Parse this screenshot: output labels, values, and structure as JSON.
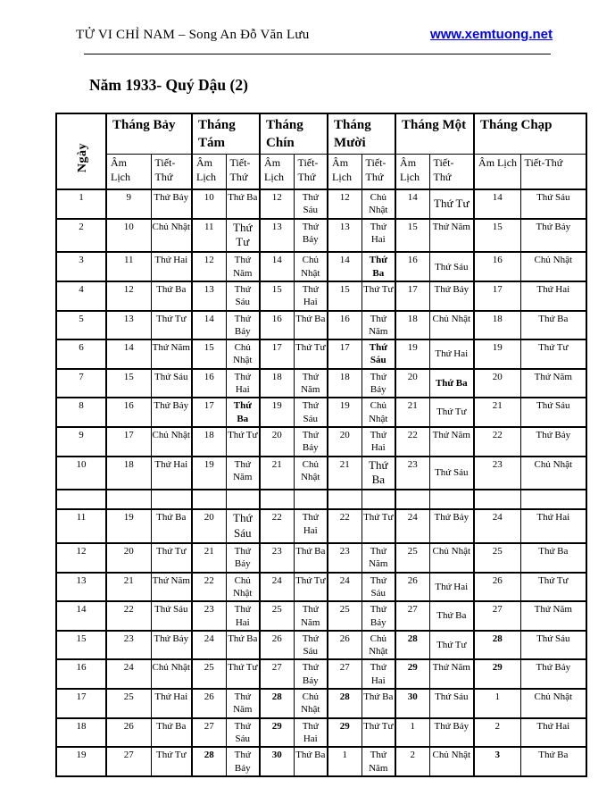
{
  "header": {
    "left_text": "TỬ VI CHỈ NAM – Song An Đỗ Văn Lưu",
    "link_text": "www.xemtuong.net",
    "link_color": "#0000ff"
  },
  "title": "Năm 1933- Quý Dậu (2)",
  "table": {
    "day_label": "Ngày",
    "months": [
      "Tháng Bảy",
      "Tháng Tám",
      "Tháng Chín",
      "Tháng Mười",
      "Tháng Một",
      "Tháng Chạp"
    ],
    "sub": {
      "am": "Âm Lịch",
      "tiet": "Tiết-Thứ"
    },
    "rows": [
      {
        "day": "1",
        "cells": [
          {
            "a": "9",
            "t": "Thứ Bảy"
          },
          {
            "a": "10",
            "t": "Thứ Ba"
          },
          {
            "a": "12",
            "t": "Thứ Sáu"
          },
          {
            "a": "12",
            "t": "Chủ Nhật"
          },
          {
            "a": "14",
            "t": "Thứ Tư",
            "tl": 1,
            "c": 1
          },
          {
            "a": "14",
            "t": "Thứ Sáu"
          }
        ]
      },
      {
        "day": "2",
        "cells": [
          {
            "a": "10",
            "t": "Chủ Nhật"
          },
          {
            "a": "11",
            "t": "Thứ Tư",
            "tl": 1
          },
          {
            "a": "13",
            "t": "Thứ Bảy"
          },
          {
            "a": "13",
            "t": "Thứ Hai"
          },
          {
            "a": "15",
            "t": "Thứ Năm"
          },
          {
            "a": "15",
            "t": "Thứ Bảy"
          }
        ]
      },
      {
        "day": "3",
        "cells": [
          {
            "a": "11",
            "t": "Thứ Hai"
          },
          {
            "a": "12",
            "t": "Thứ Năm"
          },
          {
            "a": "14",
            "t": "Chủ Nhật"
          },
          {
            "a": "14",
            "t": "Thứ Ba",
            "tb": 1
          },
          {
            "a": "16",
            "t": "Thứ Sáu",
            "c": 1
          },
          {
            "a": "16",
            "t": "Chủ Nhật"
          }
        ]
      },
      {
        "day": "4",
        "cells": [
          {
            "a": "12",
            "t": "Thứ Ba"
          },
          {
            "a": "13",
            "t": "Thứ Sáu"
          },
          {
            "a": "15",
            "t": "Thứ Hai"
          },
          {
            "a": "15",
            "t": "Thứ Tư"
          },
          {
            "a": "17",
            "t": "Thứ Bảy"
          },
          {
            "a": "17",
            "t": "Thứ Hai"
          }
        ]
      },
      {
        "day": "5",
        "cells": [
          {
            "a": "13",
            "t": "Thứ Tư"
          },
          {
            "a": "14",
            "t": "Thứ Bảy"
          },
          {
            "a": "16",
            "t": "Thứ Ba"
          },
          {
            "a": "16",
            "t": "Thứ Năm"
          },
          {
            "a": "18",
            "t": "Chủ Nhật"
          },
          {
            "a": "18",
            "t": "Thứ Ba"
          }
        ]
      },
      {
        "day": "6",
        "cells": [
          {
            "a": "14",
            "t": "Thứ Năm"
          },
          {
            "a": "15",
            "t": "Chủ Nhật"
          },
          {
            "a": "17",
            "t": "Thứ Tư"
          },
          {
            "a": "17",
            "t": "Thứ Sáu",
            "tb": 1
          },
          {
            "a": "19",
            "t": "Thứ Hai",
            "c": 1
          },
          {
            "a": "19",
            "t": "Thứ Tư"
          }
        ]
      },
      {
        "day": "7",
        "cells": [
          {
            "a": "15",
            "t": "Thứ Sáu"
          },
          {
            "a": "16",
            "t": "Thứ Hai"
          },
          {
            "a": "18",
            "t": "Thứ Năm"
          },
          {
            "a": "18",
            "t": "Thứ Bảy"
          },
          {
            "a": "20",
            "t": "Thứ Ba",
            "tb": 1,
            "c": 1
          },
          {
            "a": "20",
            "t": "Thứ Năm"
          }
        ]
      },
      {
        "day": "8",
        "cells": [
          {
            "a": "16",
            "t": "Thứ Bảy"
          },
          {
            "a": "17",
            "t": "Thứ Ba",
            "tb": 1
          },
          {
            "a": "19",
            "t": "Thứ Sáu"
          },
          {
            "a": "19",
            "t": "Chủ Nhật"
          },
          {
            "a": "21",
            "t": "Thứ Tư",
            "c": 1
          },
          {
            "a": "21",
            "t": "Thứ Sáu"
          }
        ]
      },
      {
        "day": "9",
        "cells": [
          {
            "a": "17",
            "t": "Chủ Nhật"
          },
          {
            "a": "18",
            "t": "Thứ Tư"
          },
          {
            "a": "20",
            "t": "Thứ Bảy"
          },
          {
            "a": "20",
            "t": "Thứ Hai"
          },
          {
            "a": "22",
            "t": "Thứ Năm"
          },
          {
            "a": "22",
            "t": "Thứ Bảy"
          }
        ]
      },
      {
        "day": "10",
        "cells": [
          {
            "a": "18",
            "t": "Thứ Hai"
          },
          {
            "a": "19",
            "t": "Thứ Năm"
          },
          {
            "a": "21",
            "t": "Chủ Nhật"
          },
          {
            "a": "21",
            "t": "Thứ Ba",
            "tl": 1
          },
          {
            "a": "23",
            "t": "Thứ Sáu",
            "c": 1
          },
          {
            "a": "23",
            "t": "Chủ Nhật"
          }
        ]
      },
      {
        "empty": true
      },
      {
        "day": "11",
        "cells": [
          {
            "a": "19",
            "t": "Thứ Ba"
          },
          {
            "a": "20",
            "t": "Thứ Sáu",
            "tl": 1
          },
          {
            "a": "22",
            "t": "Thứ Hai"
          },
          {
            "a": "22",
            "t": "Thứ Tư"
          },
          {
            "a": "24",
            "t": "Thứ Bảy"
          },
          {
            "a": "24",
            "t": "Thứ Hai"
          }
        ]
      },
      {
        "day": "12",
        "cells": [
          {
            "a": "20",
            "t": "Thứ Tư"
          },
          {
            "a": "21",
            "t": "Thứ Bảy"
          },
          {
            "a": "23",
            "t": "Thứ Ba"
          },
          {
            "a": "23",
            "t": "Thứ Năm"
          },
          {
            "a": "25",
            "t": "Chủ Nhật"
          },
          {
            "a": "25",
            "t": "Thứ Ba"
          }
        ]
      },
      {
        "day": "13",
        "cells": [
          {
            "a": "21",
            "t": "Thứ Năm"
          },
          {
            "a": "22",
            "t": "Chủ Nhật"
          },
          {
            "a": "24",
            "t": "Thứ Tư"
          },
          {
            "a": "24",
            "t": "Thứ Sáu"
          },
          {
            "a": "26",
            "t": "Thứ Hai",
            "c": 1
          },
          {
            "a": "26",
            "t": "Thứ Tư"
          }
        ]
      },
      {
        "day": "14",
        "cells": [
          {
            "a": "22",
            "t": "Thứ Sáu"
          },
          {
            "a": "23",
            "t": "Thứ Hai"
          },
          {
            "a": "25",
            "t": "Thứ Năm"
          },
          {
            "a": "25",
            "t": "Thứ Bảy"
          },
          {
            "a": "27",
            "t": "Thứ Ba",
            "c": 1
          },
          {
            "a": "27",
            "t": "Thứ Năm"
          }
        ]
      },
      {
        "day": "15",
        "cells": [
          {
            "a": "23",
            "t": "Thứ Bảy"
          },
          {
            "a": "24",
            "t": "Thứ Ba"
          },
          {
            "a": "26",
            "t": "Thứ Sáu"
          },
          {
            "a": "26",
            "t": "Chủ Nhật"
          },
          {
            "a": "28",
            "ab": 1,
            "t": "Thứ Tư",
            "c": 1
          },
          {
            "a": "28",
            "ab": 1,
            "t": "Thứ Sáu"
          }
        ]
      },
      {
        "day": "16",
        "cells": [
          {
            "a": "24",
            "t": "Chủ Nhật"
          },
          {
            "a": "25",
            "t": "Thứ Tư"
          },
          {
            "a": "27",
            "t": "Thứ Bảy"
          },
          {
            "a": "27",
            "t": "Thứ Hai"
          },
          {
            "a": "29",
            "ab": 1,
            "t": "Thứ Năm"
          },
          {
            "a": "29",
            "ab": 1,
            "t": "Thứ Bảy"
          }
        ]
      },
      {
        "day": "17",
        "cells": [
          {
            "a": "25",
            "t": "Thứ Hai"
          },
          {
            "a": "26",
            "t": "Thứ Năm"
          },
          {
            "a": "28",
            "ab": 1,
            "t": "Chủ Nhật"
          },
          {
            "a": "28",
            "ab": 1,
            "t": "Thứ Ba"
          },
          {
            "a": "30",
            "ab": 1,
            "t": "Thứ Sáu"
          },
          {
            "a": "1",
            "t": "Chủ Nhật"
          }
        ]
      },
      {
        "day": "18",
        "cells": [
          {
            "a": "26",
            "t": "Thứ Ba"
          },
          {
            "a": "27",
            "t": "Thứ Sáu"
          },
          {
            "a": "29",
            "ab": 1,
            "t": "Thứ Hai"
          },
          {
            "a": "29",
            "ab": 1,
            "t": "Thứ Tư"
          },
          {
            "a": "1",
            "t": "Thứ Bảy"
          },
          {
            "a": "2",
            "t": "Thứ Hai"
          }
        ]
      },
      {
        "day": "19",
        "cells": [
          {
            "a": "27",
            "t": "Thứ Tư"
          },
          {
            "a": "28",
            "ab": 1,
            "t": "Thứ Bảy"
          },
          {
            "a": "30",
            "ab": 1,
            "t": "Thứ Ba"
          },
          {
            "a": "1",
            "t": "Thứ Năm"
          },
          {
            "a": "2",
            "t": "Chủ Nhật"
          },
          {
            "a": "3",
            "ab": 1,
            "t": "Thứ Ba"
          }
        ]
      }
    ]
  }
}
